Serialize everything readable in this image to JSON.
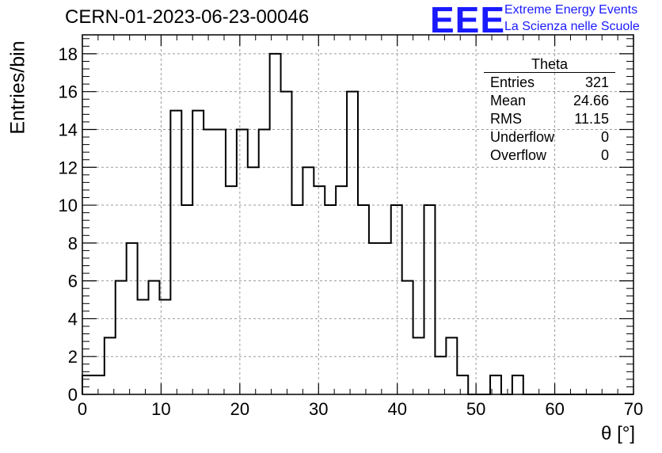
{
  "page_title": "CERN-01-2023-06-23-00046",
  "logo": {
    "mark": "EEE",
    "line1": "Extreme Energy Events",
    "line2": "La Scienza nelle Scuole",
    "color": "#1a1aff"
  },
  "stats_box": {
    "title": "Theta",
    "rows": [
      {
        "label": "Entries",
        "value": "321"
      },
      {
        "label": "Mean",
        "value": "24.66"
      },
      {
        "label": "RMS",
        "value": "11.15"
      },
      {
        "label": "Underflow",
        "value": "0"
      },
      {
        "label": "Overflow",
        "value": "0"
      }
    ]
  },
  "chart_data": {
    "type": "bar",
    "histogram_style": "step",
    "title": "CERN-01-2023-06-23-00046",
    "xlabel": "θ [°]",
    "ylabel": "Entries/bin",
    "xlim": [
      0,
      70
    ],
    "ylim": [
      0,
      19
    ],
    "bin_width": 1.4,
    "x_ticks": [
      0,
      10,
      20,
      30,
      40,
      50,
      60,
      70
    ],
    "y_ticks": [
      0,
      2,
      4,
      6,
      8,
      10,
      12,
      14,
      16,
      18
    ],
    "grid": true,
    "bin_edges": [
      0,
      1.4,
      2.8,
      4.2,
      5.6,
      7.0,
      8.4,
      9.8,
      11.2,
      12.6,
      14.0,
      15.4,
      16.8,
      18.2,
      19.6,
      21.0,
      22.4,
      23.8,
      25.2,
      26.6,
      28.0,
      29.4,
      30.8,
      32.2,
      33.6,
      35.0,
      36.4,
      37.8,
      39.2,
      40.6,
      42.0,
      43.4,
      44.8,
      46.2,
      47.6,
      49.0,
      50.4,
      51.8,
      53.2,
      54.6,
      56.0,
      57.4,
      58.8,
      60.2,
      61.6,
      63.0,
      64.4,
      65.8,
      67.2,
      68.6,
      70.0
    ],
    "values": [
      1,
      1,
      3,
      6,
      8,
      5,
      6,
      5,
      15,
      10,
      15,
      14,
      14,
      11,
      14,
      12,
      14,
      18,
      16,
      10,
      12,
      11,
      10,
      11,
      16,
      10,
      8,
      8,
      10,
      6,
      3,
      10,
      2,
      3,
      1,
      0,
      0,
      1,
      0,
      1,
      0,
      0,
      0,
      0,
      0,
      0,
      0,
      0,
      0,
      0
    ],
    "line_color": "#000000"
  }
}
